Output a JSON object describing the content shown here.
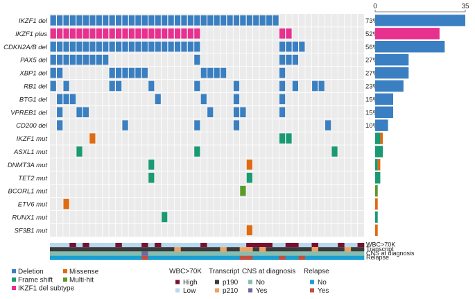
{
  "chart_data": {
    "type": "oncoprint",
    "n_samples": 48,
    "x_axis": {
      "min": 0,
      "max": 35,
      "tick_labels": [
        "0",
        "35"
      ]
    },
    "colors": {
      "Deletion": "#3a7fc1",
      "Frame shift": "#1a9a72",
      "IKZF1 del subtype": "#e8308f",
      "Missense": "#e06a12",
      "Multi-hit": "#5a9a2a",
      "grid_bg": "#ebebeb",
      "wbc_high": "#7a1030",
      "wbc_low": "#b8d8f0",
      "transcript_p190": "#3a3a3a",
      "transcript_p210": "#f0a060",
      "cns_no": "#86bdb0",
      "cns_yes": "#6a6aa0",
      "relapse_no": "#1aa0d0",
      "relapse_yes": "#c05040"
    },
    "rows": [
      {
        "gene": "IKZF1 del",
        "pct": "73%",
        "count": 35,
        "type": "Deletion",
        "samples": [
          0,
          1,
          2,
          3,
          4,
          5,
          6,
          7,
          8,
          9,
          10,
          11,
          12,
          13,
          14,
          15,
          16,
          17,
          18,
          19,
          20,
          21,
          22,
          23,
          24,
          25,
          26,
          27,
          28,
          29,
          30,
          31,
          32,
          33,
          34
        ]
      },
      {
        "gene": "IKZF1 plus",
        "pct": "52%",
        "count": 25,
        "type": "IKZF1 del subtype",
        "samples": [
          0,
          1,
          2,
          3,
          4,
          5,
          6,
          7,
          8,
          9,
          10,
          11,
          12,
          13,
          14,
          15,
          16,
          17,
          18,
          19,
          20,
          21,
          22,
          35,
          36
        ]
      },
      {
        "gene": "CDKN2A/B del",
        "pct": "56%",
        "count": 27,
        "type": "Deletion",
        "samples": [
          0,
          1,
          2,
          3,
          4,
          5,
          6,
          7,
          8,
          9,
          10,
          11,
          12,
          13,
          14,
          15,
          16,
          17,
          18,
          19,
          20,
          21,
          22,
          35,
          36,
          37,
          38
        ]
      },
      {
        "gene": "PAX5 del",
        "pct": "27%",
        "count": 13,
        "type": "Deletion",
        "samples": [
          0,
          1,
          2,
          3,
          4,
          5,
          6,
          7,
          8,
          22,
          35,
          36,
          37
        ]
      },
      {
        "gene": "XBP1 del",
        "pct": "27%",
        "count": 13,
        "type": "Deletion",
        "samples": [
          0,
          1,
          9,
          10,
          11,
          12,
          13,
          14,
          23,
          24,
          25,
          26,
          35
        ]
      },
      {
        "gene": "RB1 del",
        "pct": "23%",
        "count": 11,
        "type": "Deletion",
        "samples": [
          0,
          2,
          9,
          10,
          15,
          22,
          28,
          35,
          37,
          40,
          41
        ]
      },
      {
        "gene": "BTG1 del",
        "pct": "15%",
        "count": 7,
        "type": "Deletion",
        "samples": [
          1,
          2,
          3,
          16,
          23,
          28,
          35
        ]
      },
      {
        "gene": "VPREB1 del",
        "pct": "15%",
        "count": 7,
        "type": "Deletion",
        "samples": [
          1,
          4,
          5,
          24,
          28,
          29,
          35
        ]
      },
      {
        "gene": "CD200 del",
        "pct": "10%",
        "count": 5,
        "type": "Deletion",
        "samples": [
          1,
          11,
          22,
          28,
          42
        ]
      },
      {
        "gene": "IKZF1 mut",
        "pct": "",
        "count": 3,
        "segments": [
          {
            "type": "Frame shift",
            "n": 2
          },
          {
            "type": "Missense",
            "n": 1
          }
        ],
        "cells": [
          {
            "s": 6,
            "type": "Missense"
          },
          {
            "s": 35,
            "type": "Frame shift"
          },
          {
            "s": 36,
            "type": "Frame shift"
          }
        ]
      },
      {
        "gene": "ASXL1 mut",
        "pct": "",
        "count": 3,
        "segments": [
          {
            "type": "Frame shift",
            "n": 3
          }
        ],
        "cells": [
          {
            "s": 4,
            "type": "Frame shift"
          },
          {
            "s": 22,
            "type": "Frame shift"
          },
          {
            "s": 43,
            "type": "Frame shift"
          }
        ]
      },
      {
        "gene": "DNMT3A mut",
        "pct": "",
        "count": 2,
        "segments": [
          {
            "type": "Frame shift",
            "n": 1
          },
          {
            "type": "Missense",
            "n": 1
          }
        ],
        "cells": [
          {
            "s": 15,
            "type": "Frame shift"
          },
          {
            "s": 30,
            "type": "Missense"
          }
        ]
      },
      {
        "gene": "TET2 mut",
        "pct": "",
        "count": 2,
        "segments": [
          {
            "type": "Frame shift",
            "n": 2
          }
        ],
        "cells": [
          {
            "s": 15,
            "type": "Frame shift"
          },
          {
            "s": 30,
            "type": "Frame shift"
          }
        ]
      },
      {
        "gene": "BCORL1 mut",
        "pct": "",
        "count": 1,
        "segments": [
          {
            "type": "Multi-hit",
            "n": 1
          }
        ],
        "cells": [
          {
            "s": 29,
            "type": "Multi-hit"
          }
        ]
      },
      {
        "gene": "ETV6 mut",
        "pct": "",
        "count": 1,
        "segments": [
          {
            "type": "Missense",
            "n": 1
          }
        ],
        "cells": [
          {
            "s": 2,
            "type": "Missense"
          }
        ]
      },
      {
        "gene": "RUNX1 mut",
        "pct": "",
        "count": 1,
        "segments": [
          {
            "type": "Frame shift",
            "n": 1
          }
        ],
        "cells": [
          {
            "s": 17,
            "type": "Frame shift"
          }
        ]
      },
      {
        "gene": "SF3B1 mut",
        "pct": "",
        "count": 1,
        "segments": [
          {
            "type": "Missense",
            "n": 1
          }
        ],
        "cells": [
          {
            "s": 30,
            "type": "Missense"
          }
        ]
      }
    ],
    "annotation_tracks": [
      {
        "name": "WBC>70K",
        "values": [
          "L",
          "L",
          "L",
          "H",
          "L",
          "H",
          "L",
          "L",
          "L",
          "L",
          "H",
          "L",
          "L",
          "L",
          "H",
          "L",
          "H",
          "L",
          "L",
          "L",
          "L",
          "L",
          "L",
          "H",
          "L",
          "L",
          "L",
          "L",
          "L",
          "L",
          "H",
          "H",
          "H",
          "H",
          "L",
          "L",
          "H",
          "H",
          "L",
          "L",
          "H",
          "L",
          "L",
          "L",
          "H",
          "L",
          "L",
          "H"
        ]
      },
      {
        "name": "Transcript",
        "values": [
          "p190",
          "p190",
          "p190",
          "p190",
          "p190",
          "p190",
          "p190",
          "p190",
          "p190",
          "p190",
          "p190",
          "p190",
          "p190",
          "p190",
          "p190",
          "p190",
          "p190",
          "p190",
          "p190",
          "p210",
          "p190",
          "p190",
          "p190",
          "p190",
          "p190",
          "p190",
          "p210",
          "p190",
          "p190",
          "p210",
          "p210",
          "p190",
          "p210",
          "p190",
          "p190",
          "p190",
          "p190",
          "p190",
          "p190",
          "p190",
          "p210",
          "p190",
          "p190",
          "p190",
          "p190",
          "p210",
          "p190",
          "p190"
        ]
      },
      {
        "name": "CNS at diagnosis",
        "values": [
          "N",
          "N",
          "N",
          "N",
          "N",
          "N",
          "N",
          "N",
          "N",
          "N",
          "N",
          "N",
          "N",
          "N",
          "Y",
          "N",
          "N",
          "N",
          "N",
          "N",
          "N",
          "N",
          "N",
          "N",
          "N",
          "N",
          "N",
          "N",
          "N",
          "N",
          "N",
          "N",
          "N",
          "N",
          "N",
          "N",
          "N",
          "N",
          "N",
          "N",
          "N",
          "N",
          "N",
          "N",
          "N",
          "N",
          "N",
          "N"
        ]
      },
      {
        "name": "Relapse",
        "values": [
          "N",
          "N",
          "N",
          "N",
          "N",
          "N",
          "N",
          "N",
          "N",
          "N",
          "N",
          "N",
          "N",
          "N",
          "Y",
          "N",
          "N",
          "N",
          "N",
          "N",
          "N",
          "N",
          "N",
          "N",
          "N",
          "N",
          "N",
          "N",
          "N",
          "Y",
          "Y",
          "N",
          "N",
          "N",
          "N",
          "Y",
          "N",
          "N",
          "Y",
          "N",
          "N",
          "N",
          "N",
          "N",
          "N",
          "N",
          "N",
          "N"
        ]
      }
    ],
    "legend_alterations": [
      "Deletion",
      "Missense",
      "Frame shift",
      "Multi-hit",
      "IKZF1 del subtype"
    ],
    "legend_groups": [
      {
        "title": "WBC>70K",
        "items": [
          {
            "label": "High",
            "key": "wbc_high"
          },
          {
            "label": "Low",
            "key": "wbc_low"
          }
        ]
      },
      {
        "title": "Transcript",
        "items": [
          {
            "label": "p190",
            "key": "transcript_p190"
          },
          {
            "label": "p210",
            "key": "transcript_p210"
          }
        ]
      },
      {
        "title": "CNS at diagnosis",
        "items": [
          {
            "label": "No",
            "key": "cns_no"
          },
          {
            "label": "Yes",
            "key": "cns_yes"
          }
        ]
      },
      {
        "title": "Relapse",
        "items": [
          {
            "label": "No",
            "key": "relapse_no"
          },
          {
            "label": "Yes",
            "key": "relapse_yes"
          }
        ]
      }
    ]
  }
}
